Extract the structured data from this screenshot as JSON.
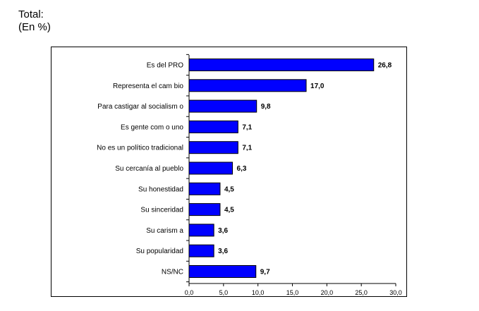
{
  "header": {
    "title": "Total:",
    "subtitle": "(En %)"
  },
  "chart_data": {
    "type": "bar",
    "orientation": "horizontal",
    "title": "",
    "xlabel": "",
    "ylabel": "",
    "categories": [
      "Es del PRO",
      "Representa el cam bio",
      "Para castigar al socialism o",
      "Es gente com o uno",
      "No es un político tradicional",
      "Su cercanía al pueblo",
      "Su honestidad",
      "Su sinceridad",
      "Su carism a",
      "Su popularidad",
      "NS/NC"
    ],
    "values": [
      26.8,
      17.0,
      9.8,
      7.1,
      7.1,
      6.3,
      4.5,
      4.5,
      3.6,
      3.6,
      9.7
    ],
    "value_labels": [
      "26,8",
      "17,0",
      "9,8",
      "7,1",
      "7,1",
      "6,3",
      "4,5",
      "4,5",
      "3,6",
      "3,6",
      "9,7"
    ],
    "xlim": [
      0,
      30
    ],
    "xticks": [
      "0,0",
      "5,0",
      "10,0",
      "15,0",
      "20,0",
      "25,0",
      "30,0"
    ],
    "grid": false,
    "legend": "none",
    "bar_color": "#0000FF",
    "bar_outline": "#000000"
  }
}
